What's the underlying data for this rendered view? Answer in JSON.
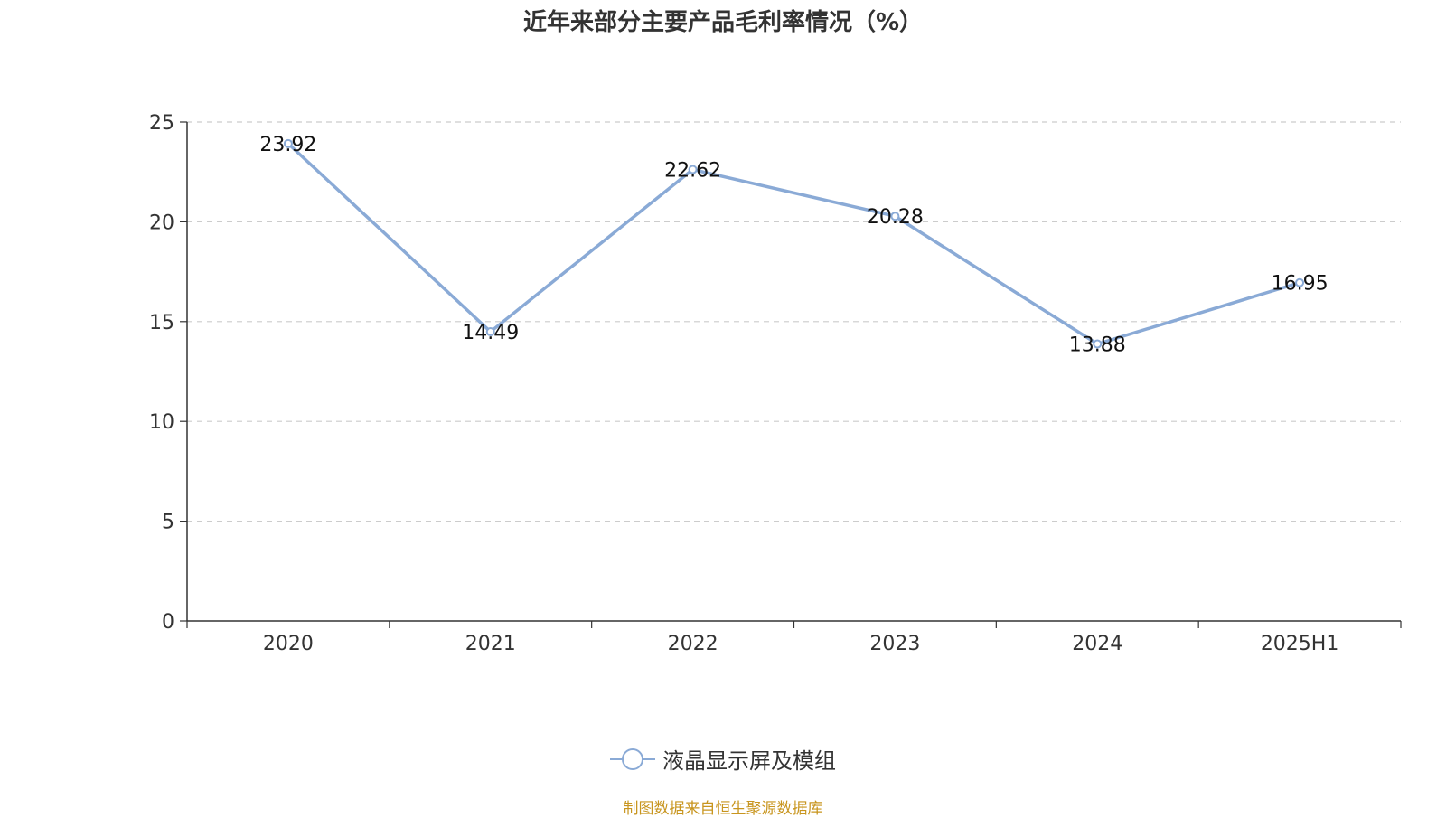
{
  "chart_data": {
    "type": "line",
    "title": "近年来部分主要产品毛利率情况（%）",
    "categories": [
      "2020",
      "2021",
      "2022",
      "2023",
      "2024",
      "2025H1"
    ],
    "series": [
      {
        "name": "液晶显示屏及模组",
        "values": [
          23.92,
          14.49,
          22.62,
          20.28,
          13.88,
          16.95
        ]
      }
    ],
    "ylim": [
      0,
      25
    ],
    "yticks": [
      0,
      5,
      10,
      15,
      20,
      25
    ],
    "xlabel": "",
    "ylabel": "",
    "grid": "horizontal-dashed",
    "legend_position": "bottom-center",
    "line_color": "#8aaad6",
    "source_note": "制图数据来自恒生聚源数据库"
  }
}
